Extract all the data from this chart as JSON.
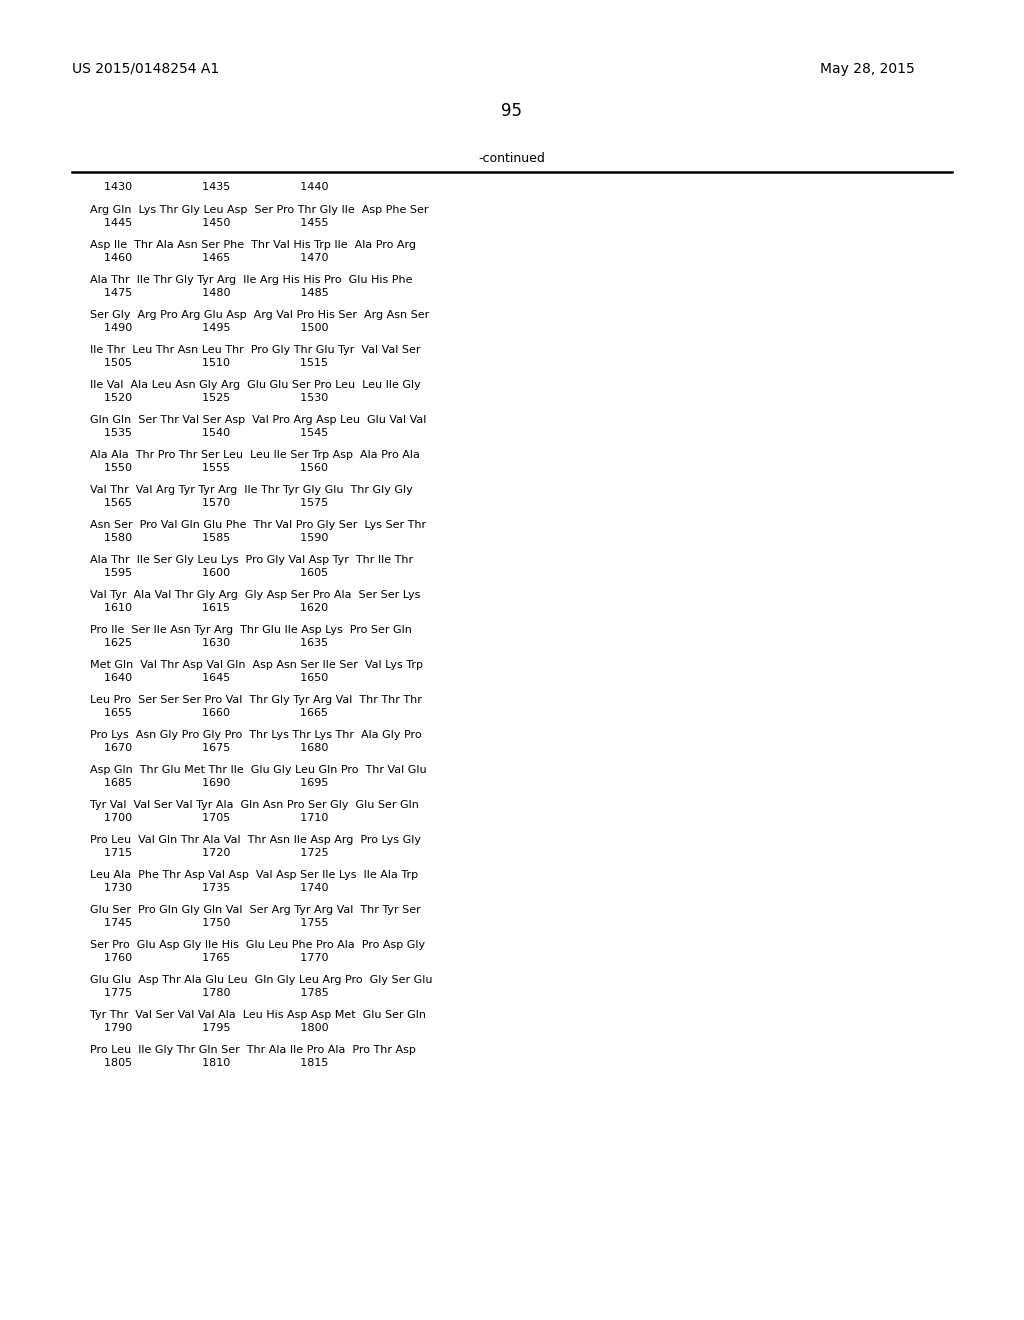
{
  "header_left": "US 2015/0148254 A1",
  "header_right": "May 28, 2015",
  "page_number": "95",
  "continued_text": "-continued",
  "background_color": "#ffffff",
  "text_color": "#000000",
  "lines": [
    [
      "    1430                    1435                    1440",
      ""
    ],
    [
      "Arg Gln  Lys Thr Gly Leu Asp  Ser Pro Thr Gly Ile  Asp Phe Ser",
      "    1445                    1450                    1455"
    ],
    [
      "Asp Ile  Thr Ala Asn Ser Phe  Thr Val His Trp Ile  Ala Pro Arg",
      "    1460                    1465                    1470"
    ],
    [
      "Ala Thr  Ile Thr Gly Tyr Arg  Ile Arg His His Pro  Glu His Phe",
      "    1475                    1480                    1485"
    ],
    [
      "Ser Gly  Arg Pro Arg Glu Asp  Arg Val Pro His Ser  Arg Asn Ser",
      "    1490                    1495                    1500"
    ],
    [
      "Ile Thr  Leu Thr Asn Leu Thr  Pro Gly Thr Glu Tyr  Val Val Ser",
      "    1505                    1510                    1515"
    ],
    [
      "Ile Val  Ala Leu Asn Gly Arg  Glu Glu Ser Pro Leu  Leu Ile Gly",
      "    1520                    1525                    1530"
    ],
    [
      "Gln Gln  Ser Thr Val Ser Asp  Val Pro Arg Asp Leu  Glu Val Val",
      "    1535                    1540                    1545"
    ],
    [
      "Ala Ala  Thr Pro Thr Ser Leu  Leu Ile Ser Trp Asp  Ala Pro Ala",
      "    1550                    1555                    1560"
    ],
    [
      "Val Thr  Val Arg Tyr Tyr Arg  Ile Thr Tyr Gly Glu  Thr Gly Gly",
      "    1565                    1570                    1575"
    ],
    [
      "Asn Ser  Pro Val Gln Glu Phe  Thr Val Pro Gly Ser  Lys Ser Thr",
      "    1580                    1585                    1590"
    ],
    [
      "Ala Thr  Ile Ser Gly Leu Lys  Pro Gly Val Asp Tyr  Thr Ile Thr",
      "    1595                    1600                    1605"
    ],
    [
      "Val Tyr  Ala Val Thr Gly Arg  Gly Asp Ser Pro Ala  Ser Ser Lys",
      "    1610                    1615                    1620"
    ],
    [
      "Pro Ile  Ser Ile Asn Tyr Arg  Thr Glu Ile Asp Lys  Pro Ser Gln",
      "    1625                    1630                    1635"
    ],
    [
      "Met Gln  Val Thr Asp Val Gln  Asp Asn Ser Ile Ser  Val Lys Trp",
      "    1640                    1645                    1650"
    ],
    [
      "Leu Pro  Ser Ser Ser Pro Val  Thr Gly Tyr Arg Val  Thr Thr Thr",
      "    1655                    1660                    1665"
    ],
    [
      "Pro Lys  Asn Gly Pro Gly Pro  Thr Lys Thr Lys Thr  Ala Gly Pro",
      "    1670                    1675                    1680"
    ],
    [
      "Asp Gln  Thr Glu Met Thr Ile  Glu Gly Leu Gln Pro  Thr Val Glu",
      "    1685                    1690                    1695"
    ],
    [
      "Tyr Val  Val Ser Val Tyr Ala  Gln Asn Pro Ser Gly  Glu Ser Gln",
      "    1700                    1705                    1710"
    ],
    [
      "Pro Leu  Val Gln Thr Ala Val  Thr Asn Ile Asp Arg  Pro Lys Gly",
      "    1715                    1720                    1725"
    ],
    [
      "Leu Ala  Phe Thr Asp Val Asp  Val Asp Ser Ile Lys  Ile Ala Trp",
      "    1730                    1735                    1740"
    ],
    [
      "Glu Ser  Pro Gln Gly Gln Val  Ser Arg Tyr Arg Val  Thr Tyr Ser",
      "    1745                    1750                    1755"
    ],
    [
      "Ser Pro  Glu Asp Gly Ile His  Glu Leu Phe Pro Ala  Pro Asp Gly",
      "    1760                    1765                    1770"
    ],
    [
      "Glu Glu  Asp Thr Ala Glu Leu  Gln Gly Leu Arg Pro  Gly Ser Glu",
      "    1775                    1780                    1785"
    ],
    [
      "Tyr Thr  Val Ser Val Val Ala  Leu His Asp Asp Met  Glu Ser Gln",
      "    1790                    1795                    1800"
    ],
    [
      "Pro Leu  Ile Gly Thr Gln Ser  Thr Ala Ile Pro Ala  Pro Thr Asp",
      "    1805                    1810                    1815"
    ]
  ]
}
